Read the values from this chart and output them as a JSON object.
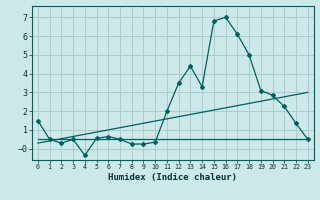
{
  "xlabel": "Humidex (Indice chaleur)",
  "background_color": "#cce8e8",
  "grid_color": "#aacccc",
  "line_color": "#006060",
  "xlim": [
    -0.5,
    23.5
  ],
  "ylim": [
    -0.6,
    7.6
  ],
  "xticks": [
    0,
    1,
    2,
    3,
    4,
    5,
    6,
    7,
    8,
    9,
    10,
    11,
    12,
    13,
    14,
    15,
    16,
    17,
    18,
    19,
    20,
    21,
    22,
    23
  ],
  "yticks": [
    0,
    1,
    2,
    3,
    4,
    5,
    6,
    7
  ],
  "series1_x": [
    0,
    1,
    2,
    3,
    4,
    5,
    6,
    7,
    8,
    9,
    10,
    11,
    12,
    13,
    14,
    15,
    16,
    17,
    18,
    19,
    20,
    21,
    22,
    23
  ],
  "series1_y": [
    1.5,
    0.5,
    0.3,
    0.5,
    -0.35,
    0.55,
    0.65,
    0.5,
    0.25,
    0.25,
    0.35,
    2.0,
    3.5,
    4.4,
    3.3,
    6.8,
    7.0,
    6.1,
    5.0,
    3.1,
    2.85,
    2.25,
    1.35,
    0.5
  ],
  "series2_x": [
    0,
    23
  ],
  "series2_y": [
    0.5,
    0.5
  ],
  "series3_x": [
    0,
    23
  ],
  "series3_y": [
    0.3,
    3.0
  ]
}
